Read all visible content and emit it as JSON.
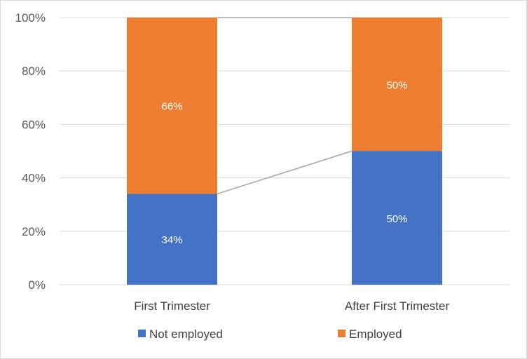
{
  "chart_data": {
    "type": "bar",
    "stacked": true,
    "percent_stacked": true,
    "categories": [
      "First Trimester",
      "After First Trimester"
    ],
    "series": [
      {
        "name": "Not employed",
        "values": [
          34,
          50
        ],
        "labels": [
          "34%",
          "50%"
        ],
        "color": "#4472C4"
      },
      {
        "name": "Employed",
        "values": [
          66,
          50
        ],
        "labels": [
          "66%",
          "50%"
        ],
        "color": "#ED7D31"
      }
    ],
    "ylim": [
      0,
      100
    ],
    "yticks": [
      {
        "value": 0,
        "label": "0%"
      },
      {
        "value": 20,
        "label": "20%"
      },
      {
        "value": 40,
        "label": "40%"
      },
      {
        "value": 60,
        "label": "60%"
      },
      {
        "value": 80,
        "label": "80%"
      },
      {
        "value": 100,
        "label": "100%"
      }
    ],
    "grid": true,
    "series_lines": true,
    "legend_position": "bottom",
    "gridline_color": "#d9d9d9",
    "series_line_color": "#a5a5a5"
  }
}
